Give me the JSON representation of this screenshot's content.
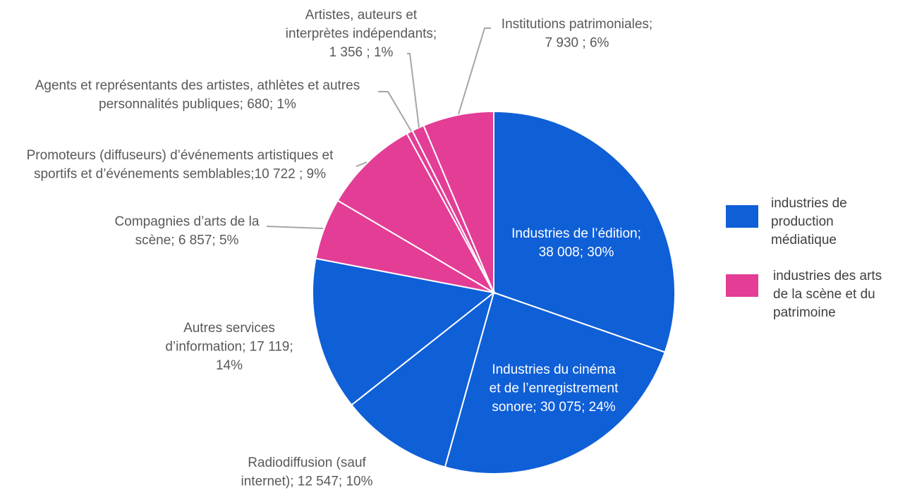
{
  "chart_data": {
    "type": "pie",
    "title": "",
    "colors": {
      "industries de production médiatique": "#0f5fd7",
      "industries des arts de la scène et du patrimoine": "#e33d96"
    },
    "legend": {
      "placement": "right",
      "entries": [
        {
          "name": "industries de production médiatique",
          "lines": [
            "industries de",
            "production",
            "médiatique"
          ],
          "color": "#0f5fd7"
        },
        {
          "name": "industries des arts de la scène et du patrimoine",
          "lines": [
            "industries des arts",
            "de la scène et du",
            "patrimoine"
          ],
          "color": "#e33d96"
        }
      ]
    },
    "slices": [
      {
        "name": "Industries de l’édition",
        "value": 38008,
        "percent": 30,
        "group": "industries de production médiatique",
        "color": "#0f5fd7",
        "label_lines": [
          "Industries de l’édition;",
          "38 008; 30%"
        ]
      },
      {
        "name": "Industries du cinéma et de l’enregistrement sonore",
        "value": 30075,
        "percent": 24,
        "group": "industries de production médiatique",
        "color": "#0f5fd7",
        "label_lines": [
          "Industries du cinéma",
          "et de l’enregistrement",
          "sonore; 30 075; 24%"
        ]
      },
      {
        "name": "Radiodiffusion (sauf internet)",
        "value": 12547,
        "percent": 10,
        "group": "industries de production médiatique",
        "color": "#0f5fd7",
        "label_lines": [
          "Radiodiffusion (sauf",
          "internet); 12 547; 10%"
        ]
      },
      {
        "name": "Autres services d’information",
        "value": 17119,
        "percent": 14,
        "group": "industries de production médiatique",
        "color": "#0f5fd7",
        "label_lines": [
          "Autres services",
          "d’information; 17 119;",
          "14%"
        ]
      },
      {
        "name": "Compagnies d’arts de la scène",
        "value": 6857,
        "percent": 5,
        "group": "industries des arts de la scène et du patrimoine",
        "color": "#e33d96",
        "label_lines": [
          "Compagnies d’arts de la",
          "scène; 6 857; 5%"
        ]
      },
      {
        "name": "Promoteurs (diffuseurs) d’événements artistiques et sportifs et d’événements semblables",
        "value": 10722,
        "percent": 9,
        "group": "industries des arts de la scène et du patrimoine",
        "color": "#e33d96",
        "label_lines": [
          "Promoteurs (diffuseurs) d’événements artistiques et",
          "sportifs et d’événements semblables;10 722 ; 9%"
        ]
      },
      {
        "name": "Agents et représentants des artistes, athlètes et autres personnalités publiques",
        "value": 680,
        "percent": 1,
        "group": "industries des arts de la scène et du patrimoine",
        "color": "#e33d96",
        "label_lines": [
          "Agents et représentants des artistes, athlètes et autres",
          "personnalités publiques; 680; 1%"
        ]
      },
      {
        "name": "Artistes, auteurs et interprètes indépendants",
        "value": 1356,
        "percent": 1,
        "group": "industries des arts de la scène et du patrimoine",
        "color": "#e33d96",
        "label_lines": [
          "Artistes, auteurs et",
          "interprètes indépendants;",
          "1 356 ; 1%"
        ]
      },
      {
        "name": "Institutions patrimoniales",
        "value": 7930,
        "percent": 6,
        "group": "industries des arts de la scène et du patrimoine",
        "color": "#e33d96",
        "label_lines": [
          "Institutions patrimoniales;",
          "7 930 ; 6%"
        ]
      }
    ]
  }
}
